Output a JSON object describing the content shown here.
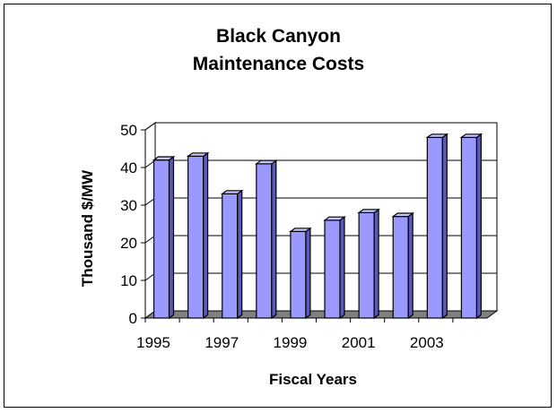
{
  "chart_data": {
    "type": "bar",
    "title": [
      "Black Canyon",
      "Maintenance Costs"
    ],
    "xlabel": "Fiscal Years",
    "ylabel": "Thousand $/MW",
    "x": [
      1995,
      1996,
      1997,
      1998,
      1999,
      2000,
      2001,
      2002,
      2003,
      2004
    ],
    "values": [
      42,
      43,
      33,
      41,
      23,
      26,
      28,
      27,
      48,
      48
    ],
    "x_tick_labels": [
      "1995",
      "",
      "1997",
      "",
      "1999",
      "",
      "2001",
      "",
      "2003",
      ""
    ],
    "y_ticks": [
      "0",
      "10",
      "20",
      "30",
      "40",
      "50"
    ],
    "ylim": [
      0,
      50
    ],
    "grid": "horizontal",
    "style": "3d-columns",
    "colors": {
      "bar_front": "#9999ff",
      "bar_side": "#5a5ab4",
      "bar_top": "#c4c4ff",
      "floor": "#808080",
      "wall": "#ffffff"
    }
  }
}
